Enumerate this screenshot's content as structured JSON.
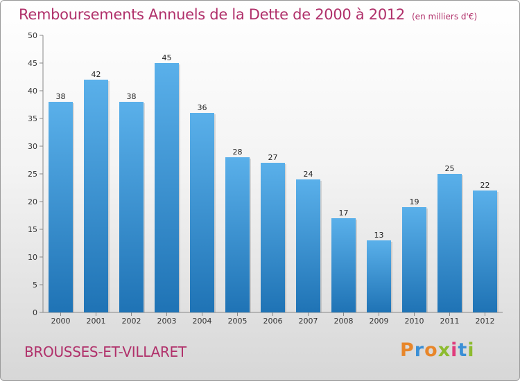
{
  "header": {
    "title": "Remboursements Annuels de la Dette de 2000 à 2012",
    "unit": "(en milliers d'€)"
  },
  "footer": {
    "commune": "BROUSSES-ET-VILLARET",
    "logo": [
      "P",
      "r",
      "o",
      "x",
      "i",
      "t",
      "i"
    ]
  },
  "colors": {
    "title": "#b0306a",
    "bar_top": "#5ab0ea",
    "bar_bottom": "#1f73b5",
    "logo": [
      "#e8862a",
      "#3a8fd6",
      "#e8862a",
      "#8dbb2f",
      "#e03b7c",
      "#3a8fd6",
      "#8dbb2f"
    ]
  },
  "chart_data": {
    "type": "bar",
    "title": "Remboursements Annuels de la Dette de 2000 à 2012",
    "categories": [
      "2000",
      "2001",
      "2002",
      "2003",
      "2004",
      "2005",
      "2006",
      "2007",
      "2008",
      "2009",
      "2010",
      "2011",
      "2012"
    ],
    "values": [
      38,
      42,
      38,
      45,
      36,
      28,
      27,
      24,
      17,
      13,
      19,
      25,
      22
    ],
    "ylim": [
      0,
      50
    ],
    "yticks": [
      0,
      5,
      10,
      15,
      20,
      25,
      30,
      35,
      40,
      45,
      50
    ],
    "grid": false,
    "legend": "none"
  }
}
